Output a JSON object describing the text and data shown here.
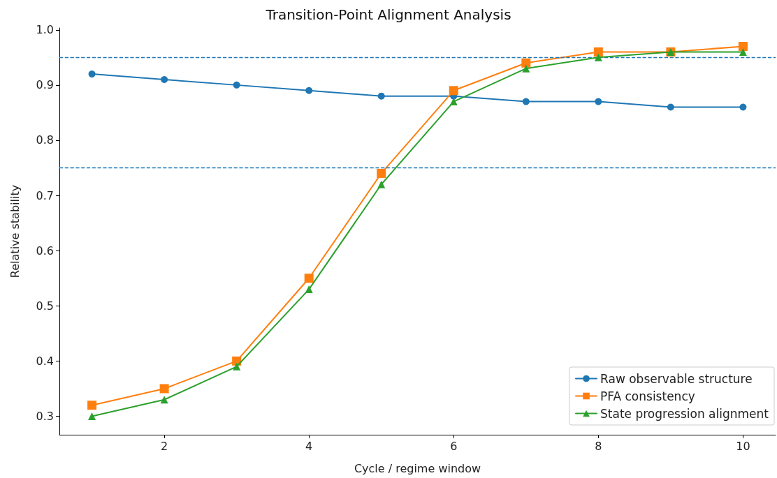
{
  "chart_data": {
    "type": "line",
    "title": "Transition-Point Alignment Analysis",
    "xlabel": "Cycle / regime window",
    "ylabel": "Relative stability",
    "x": [
      1,
      2,
      3,
      4,
      5,
      6,
      7,
      8,
      9,
      10
    ],
    "series": [
      {
        "name": "Raw observable structure",
        "color": "#1f77b4",
        "marker": "circle",
        "values": [
          0.92,
          0.91,
          0.9,
          0.89,
          0.88,
          0.88,
          0.87,
          0.87,
          0.86,
          0.86
        ]
      },
      {
        "name": "PFA consistency",
        "color": "#ff7f0e",
        "marker": "square",
        "values": [
          0.32,
          0.35,
          0.4,
          0.55,
          0.74,
          0.89,
          0.94,
          0.96,
          0.96,
          0.97
        ]
      },
      {
        "name": "State progression alignment",
        "color": "#2ca02c",
        "marker": "triangle",
        "values": [
          0.3,
          0.33,
          0.39,
          0.53,
          0.72,
          0.87,
          0.93,
          0.95,
          0.96,
          0.96
        ]
      }
    ],
    "xlim": [
      0.55,
      10.45
    ],
    "xticks": [
      2,
      4,
      6,
      8,
      10
    ],
    "ylim": [
      0.2665,
      1.0035
    ],
    "yticks": [
      0.3,
      0.4,
      0.5,
      0.6,
      0.7,
      0.8,
      0.9,
      {
        "value": 1,
        "label": "1.0"
      }
    ],
    "ref_lines": [
      {
        "axis": "y",
        "value": 0.95,
        "color": "#1f77b4",
        "line_style": "dashed"
      },
      {
        "axis": "y",
        "value": 0.75,
        "color": "#1f77b4",
        "line_style": "dashed"
      }
    ],
    "grid": false,
    "legend": "bottom right",
    "line_style": "solid"
  }
}
